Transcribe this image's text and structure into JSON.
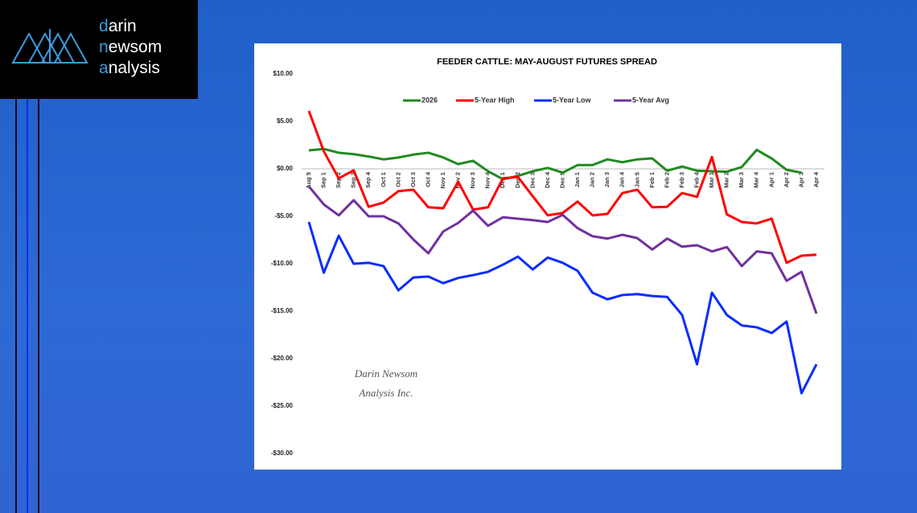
{
  "logo": [
    "darin",
    "newsom",
    "analysis"
  ],
  "chart_data": {
    "type": "line",
    "title": "FEEDER CATTLE: MAY-AUGUST FUTURES SPREAD",
    "annotations": [
      "Darin Newsom",
      "Analysis Inc."
    ],
    "legend": "top",
    "grid": false,
    "categories": [
      "Aug 5",
      "Sep 1",
      "Sep 2",
      "Sep 3",
      "Sep 4",
      "Oct 1",
      "Oct 2",
      "Oct 3",
      "Oct 4",
      "Nov 1",
      "Nov 2",
      "Nov 3",
      "Nov 4",
      "Dec 1",
      "Dec 2",
      "Dec 3",
      "Dec 4",
      "Dec 5",
      "Jan 1",
      "Jan 2",
      "Jan 3",
      "Jan 4",
      "Jan 5",
      "Feb 1",
      "Feb 2",
      "Feb 3",
      "Feb 4",
      "Mar 1",
      "Mar 2",
      "Mar 3",
      "Mar 4",
      "Apr 1",
      "Apr 2",
      "Apr 3",
      "Apr 4"
    ],
    "ylim": [
      -30,
      10
    ],
    "yticks": [
      {
        "value": 10,
        "label": "$10.00"
      },
      {
        "value": 5,
        "label": "$5.00"
      },
      {
        "value": 0,
        "label": "$0.00"
      },
      {
        "value": -5,
        "label": "-$5.00"
      },
      {
        "value": -10,
        "label": "-$10.00"
      },
      {
        "value": -15,
        "label": "-$15.00"
      },
      {
        "value": -20,
        "label": "-$20.00"
      },
      {
        "value": -25,
        "label": "-$25.00"
      },
      {
        "value": -30,
        "label": "-$30.00"
      }
    ],
    "series": [
      {
        "name": "2026",
        "color": "#1f8a1f",
        "values": [
          1.95,
          2.1,
          1.7,
          1.55,
          1.3,
          1.0,
          1.2,
          1.5,
          1.7,
          1.2,
          0.5,
          0.85,
          -0.25,
          -1.1,
          -0.75,
          -0.25,
          0.1,
          -0.4,
          0.4,
          0.4,
          1.0,
          0.7,
          1.0,
          1.1,
          -0.2,
          0.25,
          -0.2,
          -0.25,
          -0.3,
          0.2,
          2.0,
          1.1,
          -0.1,
          -0.4,
          null
        ]
      },
      {
        "name": "5-Year High",
        "color": "#ff0000",
        "values": [
          6.1,
          1.85,
          -1.0,
          -0.15,
          -4.0,
          -3.55,
          -2.35,
          -2.2,
          -4.05,
          -4.15,
          -1.35,
          -4.3,
          -4.05,
          -1.0,
          -0.85,
          -2.9,
          -4.9,
          -4.65,
          -3.45,
          -4.9,
          -4.75,
          -2.55,
          -2.2,
          -4.05,
          -4.0,
          -2.55,
          -2.95,
          1.25,
          -4.8,
          -5.6,
          -5.75,
          -5.25,
          -9.9,
          -9.15,
          -9.05
        ]
      },
      {
        "name": "5-Year Low",
        "color": "#0a2cff",
        "values": [
          -5.6,
          -10.95,
          -7.05,
          -10.0,
          -9.9,
          -10.25,
          -12.8,
          -11.45,
          -11.35,
          -12.05,
          -11.5,
          -11.2,
          -10.85,
          -10.1,
          -9.25,
          -10.6,
          -9.35,
          -9.9,
          -10.75,
          -13.05,
          -13.75,
          -13.3,
          -13.2,
          -13.4,
          -13.5,
          -15.4,
          -20.6,
          -13.05,
          -15.4,
          -16.5,
          -16.7,
          -17.3,
          -16.1,
          -23.65,
          -20.6
        ]
      },
      {
        "name": "5-Year Avg",
        "color": "#7030a0",
        "values": [
          -1.85,
          -3.75,
          -4.9,
          -3.3,
          -5.0,
          -5.0,
          -5.75,
          -7.45,
          -8.9,
          -6.6,
          -5.7,
          -4.4,
          -6.0,
          -5.1,
          -5.25,
          -5.4,
          -5.6,
          -4.85,
          -6.25,
          -7.1,
          -7.35,
          -6.95,
          -7.3,
          -8.5,
          -7.35,
          -8.2,
          -8.05,
          -8.7,
          -8.25,
          -10.25,
          -8.7,
          -8.9,
          -11.8,
          -10.85,
          -15.25
        ]
      }
    ]
  }
}
